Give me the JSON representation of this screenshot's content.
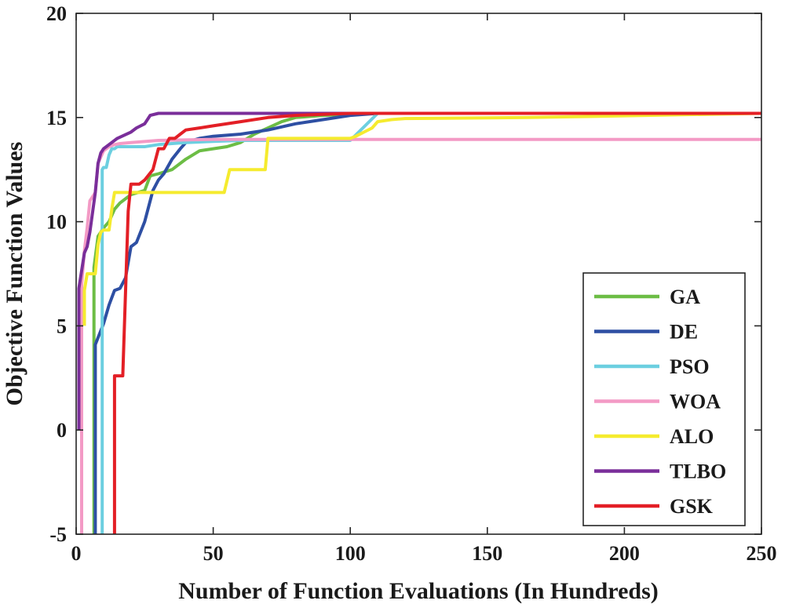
{
  "chart_data": {
    "type": "line",
    "xlabel": "Number of Function Evaluations (In Hundreds)",
    "ylabel": "Objective Function Values",
    "xlim": [
      0,
      250
    ],
    "ylim": [
      -5,
      20
    ],
    "xticks": [
      "0",
      "50",
      "100",
      "150",
      "200",
      "250"
    ],
    "yticks": [
      "-5",
      "0",
      "5",
      "10",
      "15",
      "20"
    ],
    "grid": false,
    "legend_position": "bottom-right",
    "series": [
      {
        "name": "GA",
        "color": "#6cbd45",
        "x": [
          6.5,
          6.5,
          8,
          10,
          12,
          14,
          16,
          18,
          20,
          25,
          27,
          30,
          35,
          40,
          45,
          50,
          55,
          60,
          65,
          70,
          75,
          80,
          90,
          100,
          110,
          115,
          250
        ],
        "y": [
          -5,
          7.8,
          9.3,
          9.7,
          10,
          10.6,
          10.9,
          11.1,
          11.3,
          11.5,
          12.2,
          12.3,
          12.5,
          13,
          13.4,
          13.5,
          13.6,
          13.8,
          14.2,
          14.5,
          14.8,
          15,
          15.1,
          15.15,
          15.2,
          15.2,
          15.2
        ]
      },
      {
        "name": "DE",
        "color": "#2e4fa3",
        "x": [
          7,
          7,
          10,
          12,
          14,
          16,
          18,
          20,
          22,
          25,
          28,
          30,
          32,
          35,
          38,
          40,
          45,
          50,
          60,
          70,
          80,
          90,
          100,
          110,
          250
        ],
        "y": [
          -5,
          4.1,
          5.1,
          6,
          6.7,
          6.8,
          7.3,
          8.8,
          9,
          10,
          11.5,
          12,
          12.3,
          13,
          13.5,
          13.8,
          14,
          14.1,
          14.2,
          14.4,
          14.7,
          14.9,
          15.1,
          15.2,
          15.2
        ]
      },
      {
        "name": "PSO",
        "color": "#6ccfe0",
        "x": [
          9.5,
          9.5,
          10,
          11,
          12,
          13,
          14,
          15,
          18,
          20,
          25,
          30,
          40,
          50,
          60,
          100,
          110,
          250
        ],
        "y": [
          -5,
          12.5,
          12.6,
          12.6,
          13.2,
          13.5,
          13.5,
          13.6,
          13.6,
          13.6,
          13.6,
          13.7,
          13.8,
          13.85,
          13.9,
          13.9,
          15.2,
          15.2
        ]
      },
      {
        "name": "WOA",
        "color": "#f39ac5",
        "x": [
          2,
          2,
          3,
          4,
          5,
          6,
          7,
          8,
          10,
          12,
          14,
          16,
          20,
          30,
          50,
          100,
          250
        ],
        "y": [
          -5,
          7,
          8.6,
          9.7,
          11,
          11.2,
          11.4,
          12.8,
          13.4,
          13.6,
          13.7,
          13.75,
          13.8,
          13.9,
          13.95,
          13.95,
          13.95
        ]
      },
      {
        "name": "ALO",
        "color": "#f5eb2e",
        "x": [
          3,
          3,
          4,
          5,
          6,
          7,
          8,
          9,
          10,
          12,
          13,
          14,
          15,
          20,
          54,
          56,
          69,
          70,
          100,
          102,
          105,
          108,
          110,
          115,
          120,
          165,
          250
        ],
        "y": [
          5,
          6.7,
          7.5,
          7.5,
          7.5,
          7.5,
          8.9,
          9.5,
          9.6,
          9.6,
          10.6,
          11.4,
          11.4,
          11.4,
          11.4,
          12.5,
          12.5,
          14,
          14,
          14.1,
          14.3,
          14.5,
          14.8,
          14.9,
          14.95,
          15,
          15.2
        ]
      },
      {
        "name": "TLBO",
        "color": "#7a2e9a",
        "x": [
          1,
          1,
          3,
          4,
          5,
          7,
          8,
          9,
          10,
          12,
          15,
          20,
          22,
          25,
          27,
          30,
          45,
          250
        ],
        "y": [
          0,
          6.8,
          8.5,
          8.8,
          9.5,
          11.4,
          12.8,
          13.3,
          13.5,
          13.7,
          14,
          14.3,
          14.5,
          14.7,
          15.1,
          15.2,
          15.2,
          15.2
        ]
      },
      {
        "name": "GSK",
        "color": "#e31f26",
        "x": [
          14,
          14,
          15,
          17,
          19,
          20,
          22,
          23,
          25,
          28,
          30,
          32,
          34,
          36,
          38,
          40,
          45,
          50,
          60,
          70,
          80,
          90,
          100,
          250
        ],
        "y": [
          -5,
          2.6,
          2.6,
          2.6,
          10.5,
          11.8,
          11.8,
          11.8,
          12,
          12.5,
          13.5,
          13.5,
          14,
          14,
          14.2,
          14.4,
          14.5,
          14.6,
          14.8,
          15,
          15.1,
          15.15,
          15.2,
          15.2
        ]
      }
    ]
  }
}
